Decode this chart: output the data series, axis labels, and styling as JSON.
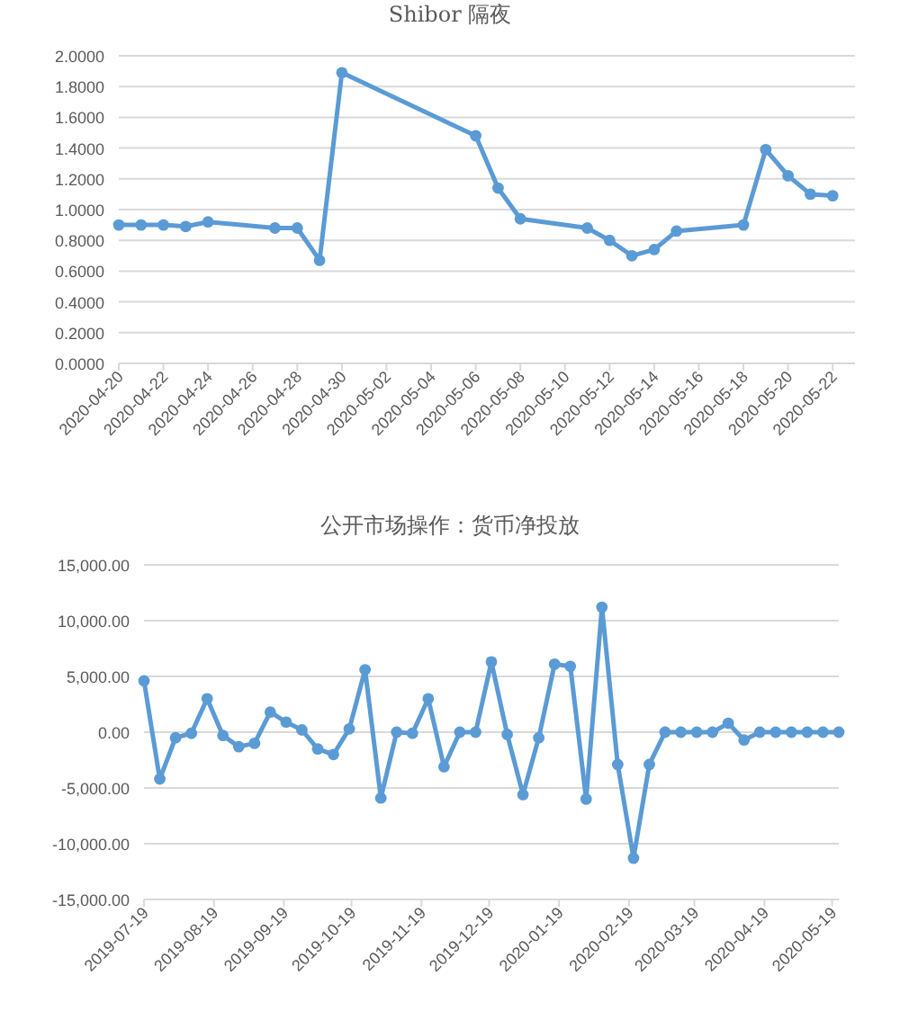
{
  "chart_data": [
    {
      "type": "line",
      "title": "Shibor 隔夜",
      "x": [
        "2020-04-20",
        "2020-04-21",
        "2020-04-22",
        "2020-04-23",
        "2020-04-24",
        "2020-04-27",
        "2020-04-28",
        "2020-04-29",
        "2020-04-30",
        "2020-05-06",
        "2020-05-07",
        "2020-05-08",
        "2020-05-11",
        "2020-05-12",
        "2020-05-13",
        "2020-05-14",
        "2020-05-15",
        "2020-05-18",
        "2020-05-19",
        "2020-05-20",
        "2020-05-21",
        "2020-05-22"
      ],
      "series": [
        {
          "color": "#5b9bd5",
          "values": [
            0.9,
            0.9,
            0.9,
            0.89,
            0.92,
            0.88,
            0.88,
            0.67,
            1.89,
            1.48,
            1.14,
            0.94,
            0.88,
            0.8,
            0.7,
            0.74,
            0.86,
            0.9,
            1.39,
            1.22,
            1.1,
            1.09
          ]
        }
      ],
      "xlim": [
        "2020-04-20",
        "2020-05-23"
      ],
      "xticks": [
        "2020-04-20",
        "2020-04-22",
        "2020-04-24",
        "2020-04-26",
        "2020-04-28",
        "2020-04-30",
        "2020-05-02",
        "2020-05-04",
        "2020-05-06",
        "2020-05-08",
        "2020-05-10",
        "2020-05-12",
        "2020-05-14",
        "2020-05-16",
        "2020-05-18",
        "2020-05-20",
        "2020-05-22"
      ],
      "ylim": [
        0,
        2
      ],
      "yticks": [
        {
          "value": 0,
          "label": "0.0000"
        },
        {
          "value": 0.2,
          "label": "0.2000"
        },
        {
          "value": 0.4,
          "label": "0.4000"
        },
        {
          "value": 0.6,
          "label": "0.6000"
        },
        {
          "value": 0.8,
          "label": "0.8000"
        },
        {
          "value": 1,
          "label": "1.0000"
        },
        {
          "value": 1.2,
          "label": "1.2000"
        },
        {
          "value": 1.4,
          "label": "1.4000"
        },
        {
          "value": 1.6,
          "label": "1.6000"
        },
        {
          "value": 1.8,
          "label": "1.8000"
        },
        {
          "value": 2,
          "label": "2.0000"
        }
      ],
      "grid": "y",
      "marker": "circle"
    },
    {
      "type": "line",
      "title": "公开市场操作：货币净投放",
      "x": [
        "2019-07-19",
        "2019-07-26",
        "2019-08-02",
        "2019-08-09",
        "2019-08-16",
        "2019-08-23",
        "2019-08-30",
        "2019-09-06",
        "2019-09-13",
        "2019-09-20",
        "2019-09-27",
        "2019-10-04",
        "2019-10-11",
        "2019-10-18",
        "2019-10-25",
        "2019-11-01",
        "2019-11-08",
        "2019-11-15",
        "2019-11-22",
        "2019-11-29",
        "2019-12-06",
        "2019-12-13",
        "2019-12-20",
        "2019-12-27",
        "2020-01-03",
        "2020-01-10",
        "2020-01-17",
        "2020-01-24",
        "2020-01-31",
        "2020-02-07",
        "2020-02-14",
        "2020-02-21",
        "2020-02-28",
        "2020-03-06",
        "2020-03-13",
        "2020-03-20",
        "2020-03-27",
        "2020-04-03",
        "2020-04-10",
        "2020-04-17",
        "2020-04-24",
        "2020-05-01",
        "2020-05-08",
        "2020-05-15",
        "2020-05-22"
      ],
      "series": [
        {
          "color": "#5b9bd5",
          "values": [
            4600,
            -4200,
            -500,
            -100,
            3000,
            -300,
            -1300,
            -1000,
            1800,
            900,
            200,
            -1500,
            -2000,
            300,
            5600,
            -5900,
            0,
            -100,
            3000,
            -3100,
            0,
            0,
            6300,
            -200,
            -5600,
            -500,
            6100,
            5900,
            -6000,
            11200,
            -2900,
            -11300,
            -2900,
            0,
            0,
            0,
            0,
            800,
            -700,
            0,
            0,
            0,
            0,
            0,
            0
          ]
        }
      ],
      "xlim": [
        "2019-07-19",
        "2020-05-22"
      ],
      "xticks": [
        "2019-07-19",
        "2019-08-19",
        "2019-09-19",
        "2019-10-19",
        "2019-11-19",
        "2019-12-19",
        "2020-01-19",
        "2020-02-19",
        "2020-03-19",
        "2020-04-19",
        "2020-05-19"
      ],
      "ylim": [
        -15000,
        15000
      ],
      "yticks": [
        {
          "value": -15000,
          "label": "-15,000.00"
        },
        {
          "value": -10000,
          "label": "-10,000.00"
        },
        {
          "value": -5000,
          "label": "-5,000.00"
        },
        {
          "value": 0,
          "label": "0.00"
        },
        {
          "value": 5000,
          "label": "5,000.00"
        },
        {
          "value": 10000,
          "label": "10,000.00"
        },
        {
          "value": 15000,
          "label": "15,000.00"
        }
      ],
      "grid": "y",
      "marker": "circle"
    }
  ]
}
